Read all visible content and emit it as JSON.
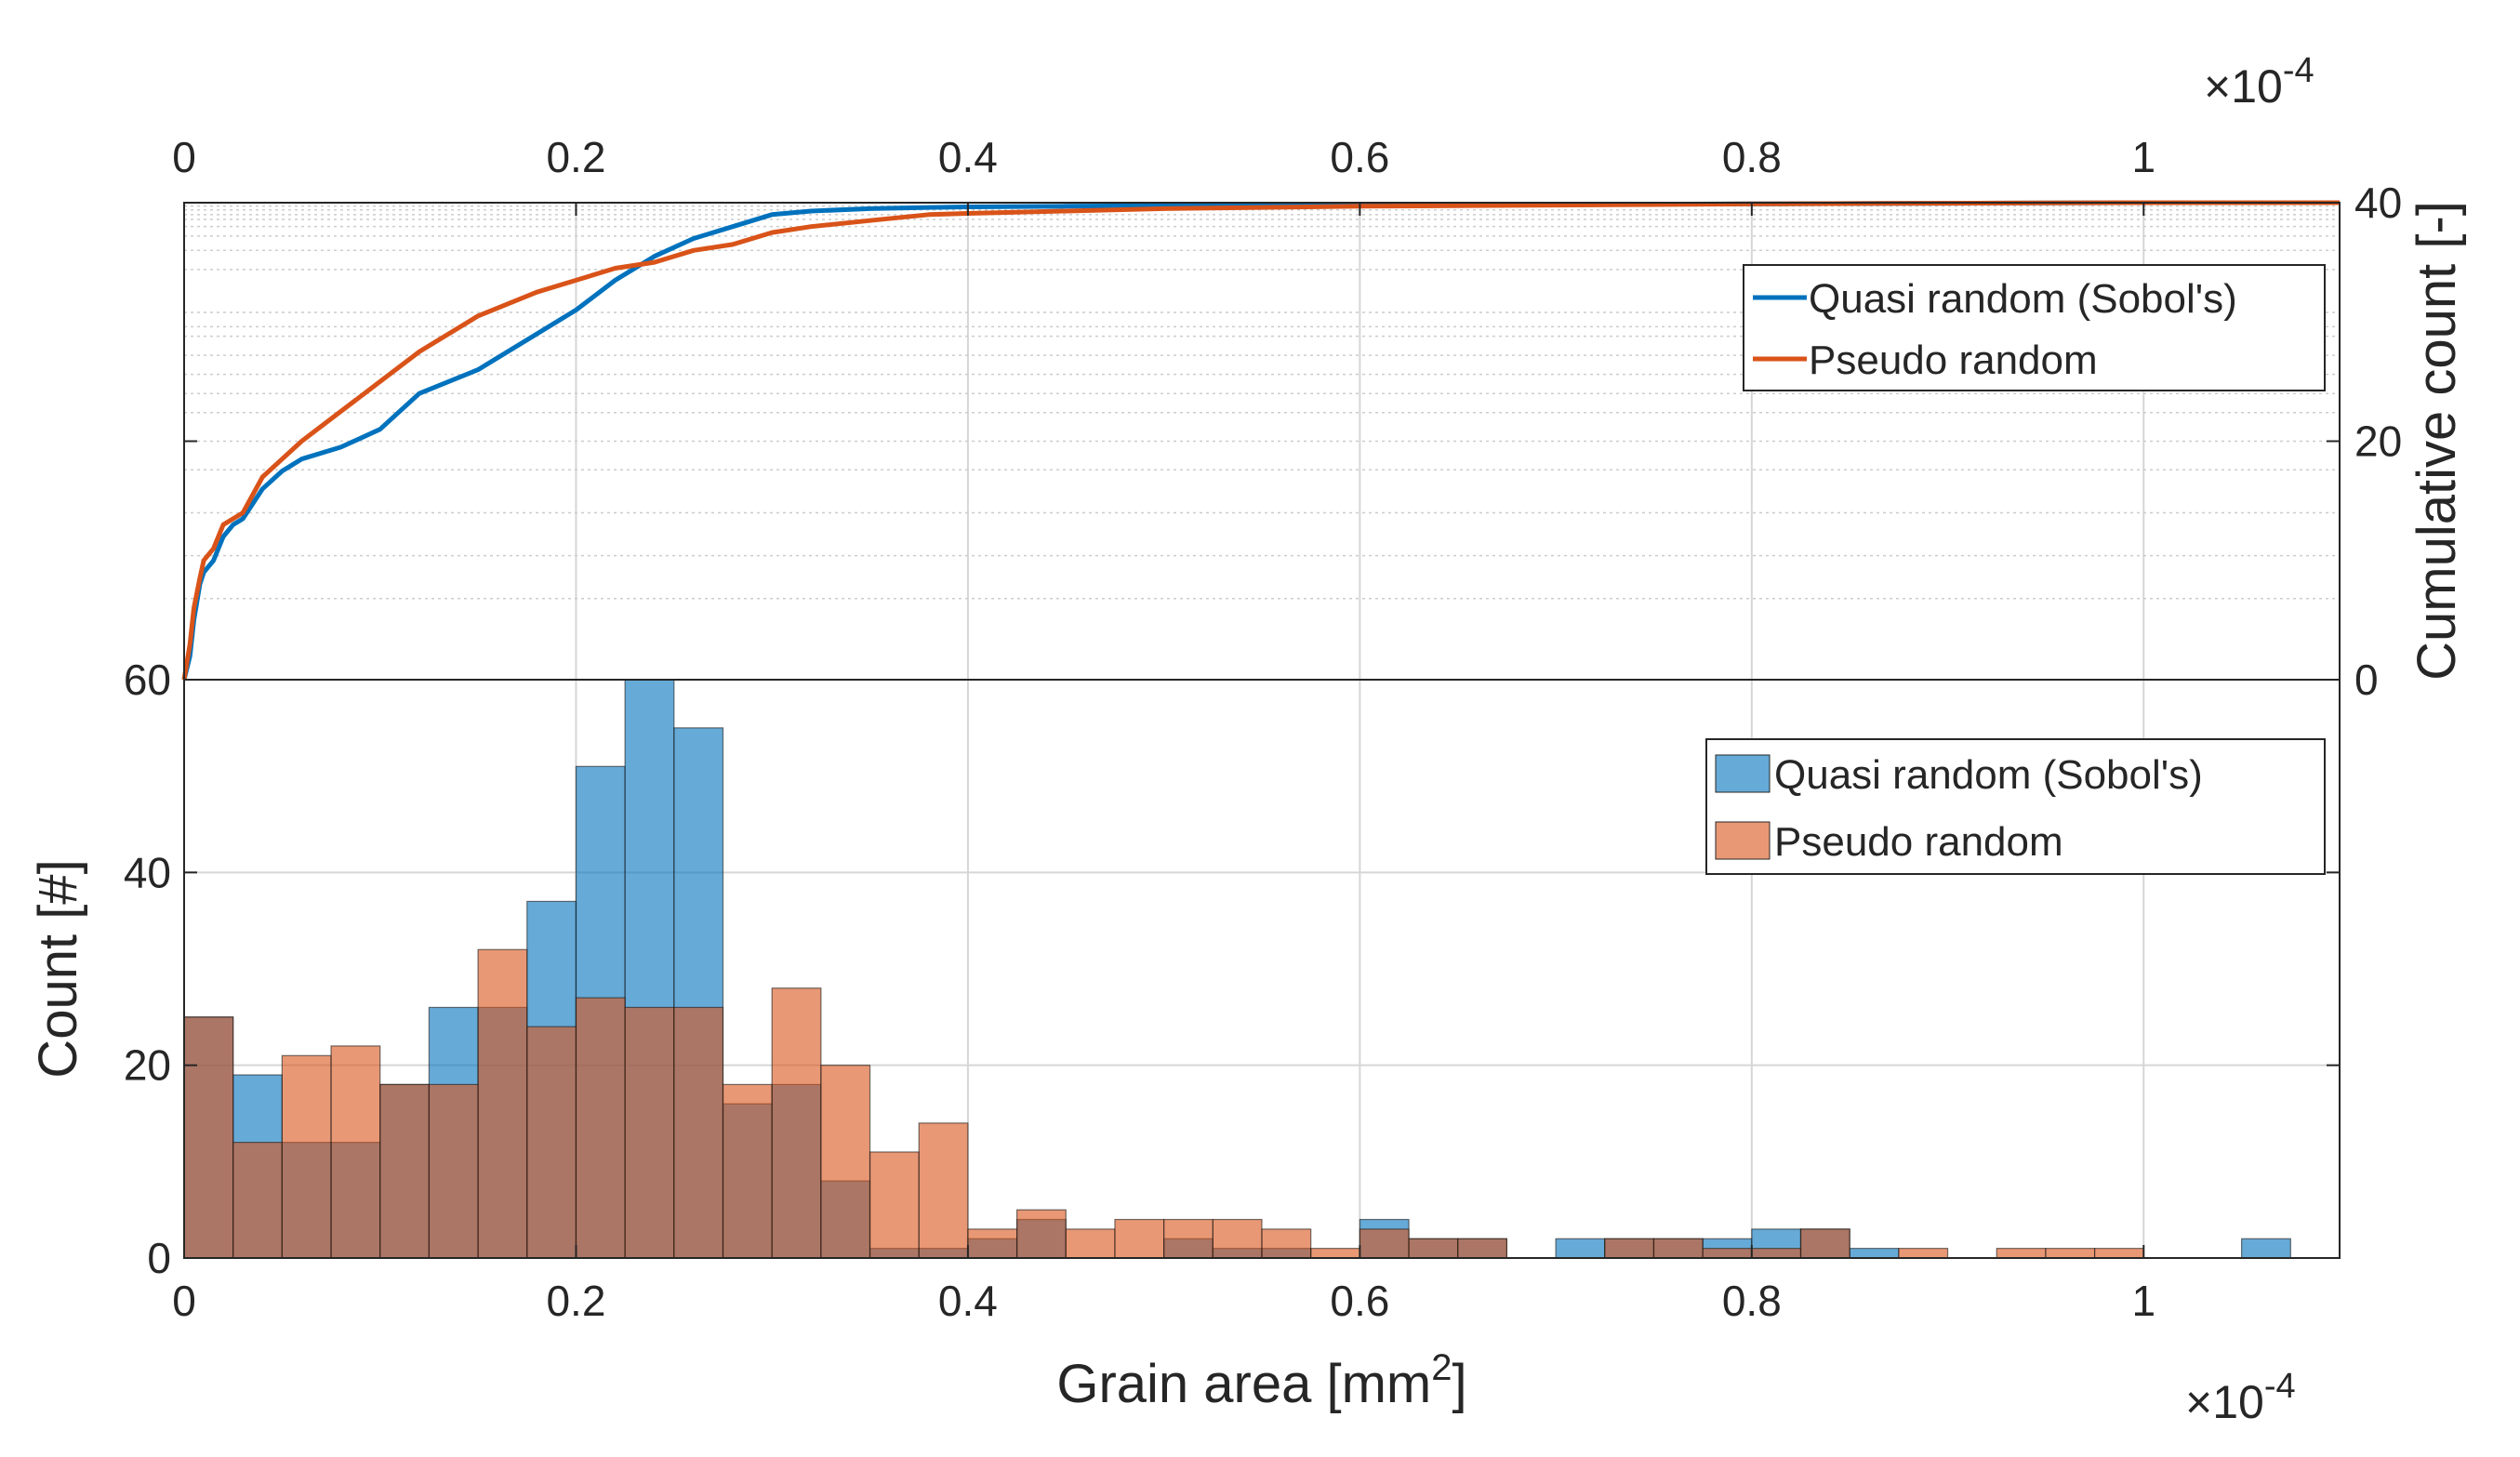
{
  "chart_data": [
    {
      "type": "line",
      "panel": "top",
      "title": "",
      "xlabel": "",
      "ylabel": "Cumulative count [-]",
      "x_exponent_label": "×10",
      "x_exponent": "-4",
      "xlim": [
        0,
        1.1
      ],
      "ylim_right": [
        0,
        40
      ],
      "x_ticks": [
        "0",
        "0.2",
        "0.4",
        "0.6",
        "0.8",
        "1"
      ],
      "x_tick_values": [
        0,
        0.2,
        0.4,
        0.6,
        0.8,
        1.0
      ],
      "y_ticks": [
        "0",
        "20",
        "40"
      ],
      "y_tick_values": [
        0,
        20,
        40
      ],
      "grid": true,
      "legend_position": "top-right",
      "series": [
        {
          "name": "Quasi random (Sobol's)",
          "color": "#0072BD",
          "x": [
            0,
            0.003,
            0.005,
            0.008,
            0.01,
            0.015,
            0.02,
            0.025,
            0.03,
            0.04,
            0.05,
            0.06,
            0.08,
            0.1,
            0.12,
            0.15,
            0.18,
            0.2,
            0.22,
            0.24,
            0.26,
            0.28,
            0.3,
            0.32,
            0.35,
            0.38,
            0.4,
            0.45,
            0.5,
            0.6,
            0.7,
            0.8,
            0.9,
            1.0,
            1.1
          ],
          "y": [
            0,
            2,
            5,
            8,
            9,
            10,
            12,
            13,
            13.5,
            16,
            17.5,
            18.5,
            19.5,
            21,
            24,
            26,
            29,
            31,
            33.5,
            35.5,
            37,
            38,
            39,
            39.3,
            39.5,
            39.6,
            39.65,
            39.7,
            39.75,
            39.8,
            39.85,
            39.9,
            39.95,
            40,
            40
          ]
        },
        {
          "name": "Pseudo random",
          "color": "#D95319",
          "x": [
            0,
            0.003,
            0.005,
            0.008,
            0.01,
            0.015,
            0.02,
            0.025,
            0.03,
            0.04,
            0.05,
            0.06,
            0.08,
            0.1,
            0.12,
            0.15,
            0.18,
            0.2,
            0.22,
            0.24,
            0.26,
            0.28,
            0.3,
            0.32,
            0.35,
            0.38,
            0.4,
            0.45,
            0.5,
            0.6,
            0.7,
            0.8,
            0.9,
            1.0,
            1.1
          ],
          "y": [
            0,
            3,
            6,
            8.5,
            10,
            11,
            13,
            13.5,
            14,
            17,
            18.5,
            20,
            22.5,
            25,
            27.5,
            30.5,
            32.5,
            33.5,
            34.5,
            35,
            36,
            36.5,
            37.5,
            38,
            38.5,
            39,
            39.1,
            39.3,
            39.5,
            39.7,
            39.8,
            39.9,
            39.95,
            40,
            40
          ]
        }
      ]
    },
    {
      "type": "bar",
      "panel": "bottom",
      "title": "",
      "xlabel": "Grain area [mm",
      "xlabel_sup": "2",
      "xlabel_end": "]",
      "ylabel": "Count [#]",
      "x_exponent_label": "×10",
      "x_exponent": "-4",
      "xlim": [
        0,
        1.1
      ],
      "ylim": [
        0,
        60
      ],
      "bin_width": 0.025,
      "x_ticks": [
        "0",
        "0.2",
        "0.4",
        "0.6",
        "0.8",
        "1"
      ],
      "x_tick_values": [
        0,
        0.2,
        0.4,
        0.6,
        0.8,
        1.0
      ],
      "y_ticks": [
        "0",
        "20",
        "40",
        "60"
      ],
      "y_tick_values": [
        0,
        20,
        40,
        60
      ],
      "grid": true,
      "legend_position": "top-right",
      "series": [
        {
          "name": "Quasi random (Sobol's)",
          "color": "#0072BD",
          "bin_starts": [
            0,
            0.025,
            0.05,
            0.075,
            0.1,
            0.125,
            0.15,
            0.175,
            0.2,
            0.225,
            0.25,
            0.275,
            0.3,
            0.325,
            0.35,
            0.375,
            0.4,
            0.425,
            0.45,
            0.475,
            0.5,
            0.525,
            0.55,
            0.575,
            0.6,
            0.625,
            0.65,
            0.675,
            0.7,
            0.725,
            0.75,
            0.775,
            0.8,
            0.825,
            0.85,
            1.05
          ],
          "values": [
            25,
            19,
            12,
            12,
            18,
            26,
            26,
            37,
            51,
            60,
            55,
            16,
            18,
            8,
            1,
            1,
            2,
            4,
            0,
            0,
            2,
            1,
            1,
            0,
            4,
            2,
            2,
            0,
            2,
            2,
            2,
            2,
            3,
            3,
            1,
            2
          ]
        },
        {
          "name": "Pseudo random",
          "color": "#D95319",
          "bin_starts": [
            0,
            0.025,
            0.05,
            0.075,
            0.1,
            0.125,
            0.15,
            0.175,
            0.2,
            0.225,
            0.25,
            0.275,
            0.3,
            0.325,
            0.35,
            0.375,
            0.4,
            0.425,
            0.45,
            0.475,
            0.5,
            0.525,
            0.55,
            0.575,
            0.6,
            0.625,
            0.65,
            0.675,
            0.7,
            0.725,
            0.75,
            0.775,
            0.8,
            0.825,
            0.85,
            0.875,
            0.9,
            0.925,
            0.95,
            0.975
          ],
          "values": [
            25,
            12,
            21,
            22,
            18,
            18,
            32,
            24,
            27,
            26,
            26,
            18,
            28,
            20,
            11,
            14,
            3,
            5,
            3,
            4,
            4,
            4,
            3,
            1,
            3,
            2,
            2,
            0,
            0,
            2,
            2,
            1,
            1,
            3,
            0,
            1,
            0,
            1,
            1,
            1
          ]
        }
      ]
    }
  ]
}
